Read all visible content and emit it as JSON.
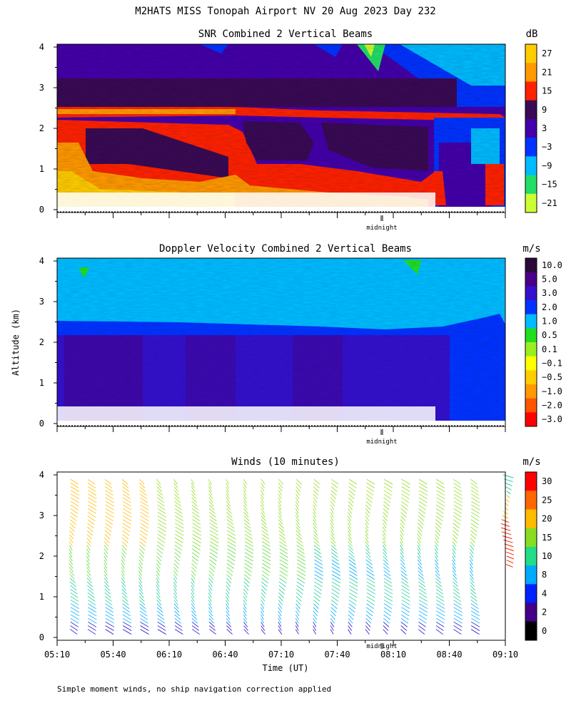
{
  "page_title": "M2HATS MISS Tonopah Airport NV  20 Aug 2023 Day 232",
  "footnote": "Simple moment winds, no ship navigation correction applied",
  "chart_data": [
    {
      "type": "heatmap",
      "title": "SNR Combined 2 Vertical Beams",
      "xlabel": "",
      "ylabel": "",
      "x_range": [
        "05:10",
        "09:10"
      ],
      "y_ticks": [
        "0",
        "1",
        "2",
        "3",
        "4"
      ],
      "ylim": [
        0,
        4
      ],
      "colorbar": {
        "unit": "dB",
        "labels": [
          "27",
          "21",
          "15",
          "9",
          "3",
          "−3",
          "−9",
          "−15",
          "−21"
        ],
        "colors": [
          "#ffcc00",
          "#ff9900",
          "#ff2200",
          "#3a0a55",
          "#4400aa",
          "#0033ff",
          "#00bbff",
          "#22dd66",
          "#ccff33"
        ]
      },
      "annotation": "midnight"
    },
    {
      "type": "heatmap",
      "title": "Doppler Velocity Combined 2 Vertical Beams",
      "xlabel": "",
      "ylabel": "Altitude (km)",
      "x_range": [
        "05:10",
        "09:10"
      ],
      "y_ticks": [
        "0",
        "1",
        "2",
        "3",
        "4"
      ],
      "ylim": [
        0,
        4
      ],
      "colorbar": {
        "unit": "m/s",
        "labels": [
          "10.0",
          "5.0",
          "3.0",
          "2.0",
          "1.0",
          "0.5",
          "0.1",
          "−0.1",
          "−0.5",
          "−1.0",
          "−2.0",
          "−3.0"
        ],
        "colors": [
          "#2a0a3a",
          "#4a0088",
          "#3311cc",
          "#0033ff",
          "#00bbff",
          "#22dd22",
          "#99ee22",
          "#ffff00",
          "#ffcc00",
          "#ff9900",
          "#ff5500",
          "#ff0000"
        ]
      },
      "annotation": "midnight"
    },
    {
      "type": "scatter",
      "title": "Winds (10 minutes)",
      "xlabel": "Time (UT)",
      "ylabel": "",
      "x_ticks": [
        "05:10",
        "05:40",
        "06:10",
        "06:40",
        "07:10",
        "07:40",
        "08:10",
        "08:40",
        "09:10"
      ],
      "y_ticks": [
        "0",
        "1",
        "2",
        "3",
        "4"
      ],
      "ylim": [
        0,
        4
      ],
      "colorbar": {
        "unit": "m/s",
        "labels": [
          "30",
          "25",
          "20",
          "15",
          "10",
          "8",
          "4",
          "2",
          "0"
        ],
        "colors": [
          "#ff0000",
          "#ff6600",
          "#ffbb00",
          "#88dd22",
          "#22dd88",
          "#00aaff",
          "#0022ff",
          "#440088",
          "#000000"
        ]
      },
      "annotation": "midnight"
    }
  ]
}
